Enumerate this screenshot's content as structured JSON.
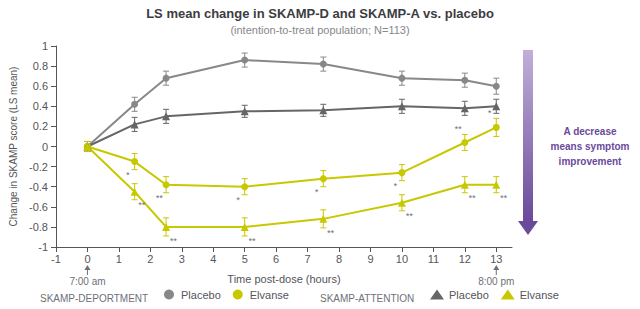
{
  "chart_data": {
    "type": "line",
    "title": "LS mean change in SKAMP-D and SKAMP-A vs. placebo",
    "subtitle": "(intention-to-treat population; N=113)",
    "x_label": "Time post-dose (hours)",
    "y_label": "Change in SKAMP score (LS mean)",
    "xlim": [
      -1,
      13.5
    ],
    "xticks": [
      -1,
      0,
      1,
      2,
      3,
      4,
      5,
      6,
      7,
      8,
      9,
      10,
      11,
      12,
      13
    ],
    "ylim": [
      -1,
      1
    ],
    "yticks": [
      -1,
      -0.8,
      -0.6,
      -0.4,
      -0.2,
      0,
      0.2,
      0.4,
      0.6,
      0.8,
      1
    ],
    "grid": false,
    "legend": "bottom",
    "series": [
      {
        "name": "Placebo",
        "group": "SKAMP-DEPORTMENT",
        "color": "#888888",
        "marker": "circle",
        "x": [
          0,
          1.5,
          2.5,
          5,
          7.5,
          10,
          12,
          13
        ],
        "values": [
          0.0,
          0.42,
          0.68,
          0.86,
          0.82,
          0.68,
          0.66,
          0.6
        ],
        "errors": [
          0.05,
          0.07,
          0.07,
          0.07,
          0.07,
          0.07,
          0.07,
          0.08
        ]
      },
      {
        "name": "Elvanse",
        "group": "SKAMP-DEPORTMENT",
        "color": "#c8c800",
        "marker": "circle",
        "x": [
          0,
          1.5,
          2.5,
          5,
          7.5,
          10,
          12,
          13
        ],
        "values": [
          0.0,
          -0.15,
          -0.38,
          -0.4,
          -0.32,
          -0.26,
          0.04,
          0.19
        ],
        "errors": [
          0.05,
          0.08,
          0.08,
          0.08,
          0.08,
          0.08,
          0.08,
          0.09
        ],
        "significance": {
          "x": [
            1.5,
            2.5,
            5.0,
            7.5,
            10.0,
            12.0,
            13.0
          ],
          "labels": [
            "*",
            "**",
            "*",
            "*",
            "*",
            "**",
            "*"
          ]
        }
      },
      {
        "name": "Placebo",
        "group": "SKAMP-ATTENTION",
        "color": "#666666",
        "marker": "triangle",
        "x": [
          0,
          1.5,
          2.5,
          5,
          7.5,
          10,
          12,
          13
        ],
        "values": [
          0.0,
          0.22,
          0.3,
          0.35,
          0.36,
          0.4,
          0.38,
          0.4
        ],
        "errors": [
          0.05,
          0.07,
          0.07,
          0.06,
          0.06,
          0.07,
          0.07,
          0.07
        ]
      },
      {
        "name": "Elvanse",
        "group": "SKAMP-ATTENTION",
        "color": "#c8c800",
        "marker": "triangle",
        "x": [
          0,
          1.5,
          2.5,
          5,
          7.5,
          10,
          12,
          13
        ],
        "values": [
          0.0,
          -0.45,
          -0.8,
          -0.8,
          -0.72,
          -0.56,
          -0.38,
          -0.38
        ],
        "errors": [
          0.05,
          0.08,
          0.09,
          0.09,
          0.09,
          0.08,
          0.08,
          0.08
        ],
        "significance": {
          "x": [
            1.5,
            2.5,
            5.0,
            7.5,
            10.0,
            12.0,
            13.0
          ],
          "labels": [
            "**",
            "**",
            "**",
            "**",
            "**",
            "**",
            "**"
          ]
        }
      }
    ],
    "annotations": [
      {
        "text": "7:00 am",
        "x": 0
      },
      {
        "text": "8:00 pm",
        "x": 13
      }
    ],
    "note": {
      "text": "A decrease\nmeans symptom\nimprovement",
      "colors": [
        "#c0b0d8",
        "#6a4a9a"
      ]
    }
  }
}
